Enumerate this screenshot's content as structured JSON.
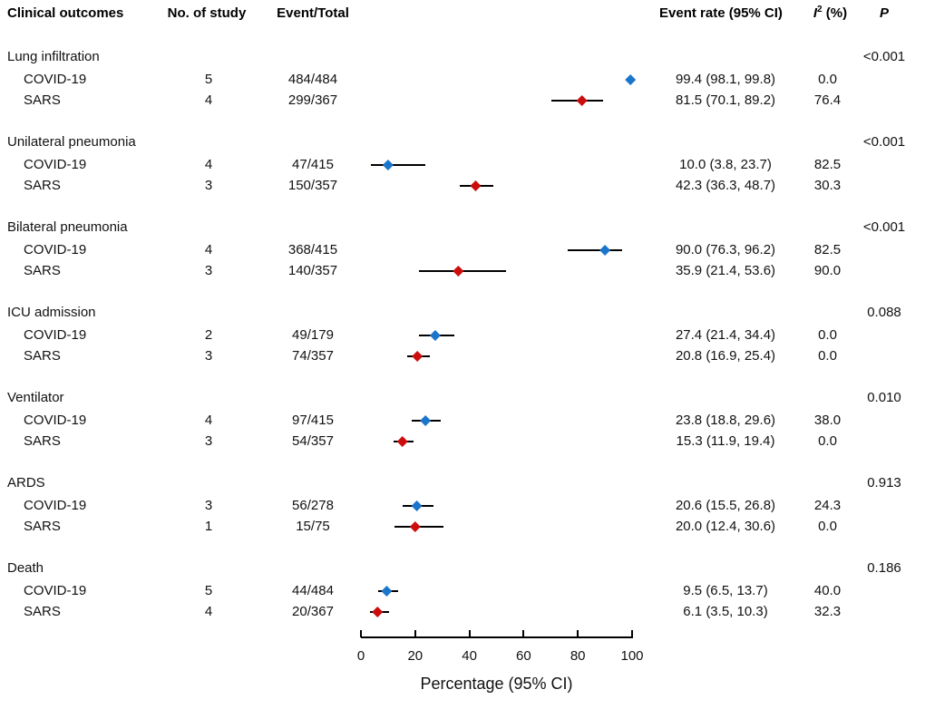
{
  "header": {
    "col_outcome": "Clinical outcomes",
    "col_n_study": "No. of study",
    "col_event_total": "Event/Total",
    "col_event_rate": "Event rate (95% CI)",
    "i2_i": "I",
    "i2_sup": "2",
    "i2_rest": " (%)",
    "col_p": "P"
  },
  "colors": {
    "covid": "#1B75CA",
    "sars": "#CC0D0D",
    "line": "#000000",
    "text": "#111111"
  },
  "chart_data": {
    "type": "forest",
    "xlabel": "Percentage (95% CI)",
    "xlim": [
      0,
      100
    ],
    "x_ticks": [
      0,
      20,
      40,
      60,
      80,
      100
    ],
    "legend": "none",
    "series_colors": {
      "COVID-19": "#1B75CA",
      "SARS": "#CC0D0D"
    },
    "groups": [
      {
        "outcome": "Lung infiltration",
        "p": "<0.001",
        "rows": [
          {
            "label": "COVID-19",
            "n_study": "5",
            "event_total": "484/484",
            "est": 99.4,
            "lo": 98.1,
            "hi": 99.8,
            "i2": "0.0"
          },
          {
            "label": "SARS",
            "n_study": "4",
            "event_total": "299/367",
            "est": 81.5,
            "lo": 70.1,
            "hi": 89.2,
            "i2": "76.4"
          }
        ]
      },
      {
        "outcome": "Unilateral pneumonia",
        "p": "<0.001",
        "rows": [
          {
            "label": "COVID-19",
            "n_study": "4",
            "event_total": "47/415",
            "est": 10.0,
            "lo": 3.8,
            "hi": 23.7,
            "i2": "82.5"
          },
          {
            "label": "SARS",
            "n_study": "3",
            "event_total": "150/357",
            "est": 42.3,
            "lo": 36.3,
            "hi": 48.7,
            "i2": "30.3"
          }
        ]
      },
      {
        "outcome": "Bilateral pneumonia",
        "p": "<0.001",
        "rows": [
          {
            "label": "COVID-19",
            "n_study": "4",
            "event_total": "368/415",
            "est": 90.0,
            "lo": 76.3,
            "hi": 96.2,
            "i2": "82.5"
          },
          {
            "label": "SARS",
            "n_study": "3",
            "event_total": "140/357",
            "est": 35.9,
            "lo": 21.4,
            "hi": 53.6,
            "i2": "90.0"
          }
        ]
      },
      {
        "outcome": "ICU admission",
        "p": "0.088",
        "rows": [
          {
            "label": "COVID-19",
            "n_study": "2",
            "event_total": "49/179",
            "est": 27.4,
            "lo": 21.4,
            "hi": 34.4,
            "i2": "0.0"
          },
          {
            "label": "SARS",
            "n_study": "3",
            "event_total": "74/357",
            "est": 20.8,
            "lo": 16.9,
            "hi": 25.4,
            "i2": "0.0"
          }
        ]
      },
      {
        "outcome": "Ventilator",
        "p": "0.010",
        "rows": [
          {
            "label": "COVID-19",
            "n_study": "4",
            "event_total": "97/415",
            "est": 23.8,
            "lo": 18.8,
            "hi": 29.6,
            "i2": "38.0"
          },
          {
            "label": "SARS",
            "n_study": "3",
            "event_total": "54/357",
            "est": 15.3,
            "lo": 11.9,
            "hi": 19.4,
            "i2": "0.0"
          }
        ]
      },
      {
        "outcome": "ARDS",
        "p": "0.913",
        "rows": [
          {
            "label": "COVID-19",
            "n_study": "3",
            "event_total": "56/278",
            "est": 20.6,
            "lo": 15.5,
            "hi": 26.8,
            "i2": "24.3"
          },
          {
            "label": "SARS",
            "n_study": "1",
            "event_total": "15/75",
            "est": 20.0,
            "lo": 12.4,
            "hi": 30.6,
            "i2": "0.0"
          }
        ]
      },
      {
        "outcome": "Death",
        "p": "0.186",
        "rows": [
          {
            "label": "COVID-19",
            "n_study": "5",
            "event_total": "44/484",
            "est": 9.5,
            "lo": 6.5,
            "hi": 13.7,
            "i2": "40.0"
          },
          {
            "label": "SARS",
            "n_study": "4",
            "event_total": "20/367",
            "est": 6.1,
            "lo": 3.5,
            "hi": 10.3,
            "i2": "32.3"
          }
        ]
      }
    ]
  }
}
